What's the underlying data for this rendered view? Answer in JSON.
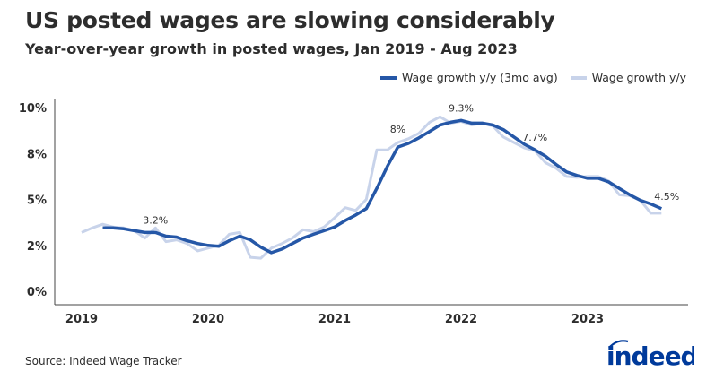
{
  "title": "US posted wages are slowing considerably",
  "subtitle": "Year-over-year growth in posted wages, Jan 2019 - Aug 2023",
  "source": "Source: Indeed Wage Tracker",
  "logo_text": "indeed",
  "colors": {
    "avg": "#2557a7",
    "raw": "#c8d3ea",
    "logo": "#003a9b"
  },
  "chart_data": {
    "type": "line",
    "title": "US posted wages are slowing considerably",
    "subtitle": "Year-over-year growth in posted wages, Jan 2019 - Aug 2023",
    "xlabel": "",
    "ylabel": "",
    "x_start": "2019-01",
    "x_frequency": "monthly",
    "x_ticks": [
      "2019",
      "2020",
      "2021",
      "2022",
      "2023"
    ],
    "y_ticks": [
      {
        "value": 0,
        "label": "0%"
      },
      {
        "value": 2.5,
        "label": "2%"
      },
      {
        "value": 5,
        "label": "5%"
      },
      {
        "value": 7.5,
        "label": "8%"
      },
      {
        "value": 10,
        "label": "10%"
      }
    ],
    "ylim": [
      0,
      10
    ],
    "grid": false,
    "legend_position": "top-right",
    "series": [
      {
        "name": "Wage growth y/y (3mo avg)",
        "start": "2019-03",
        "values": [
          3.45,
          3.45,
          3.4,
          3.3,
          3.2,
          3.2,
          3.0,
          2.95,
          2.75,
          2.6,
          2.5,
          2.45,
          2.75,
          3.0,
          2.8,
          2.4,
          2.1,
          2.3,
          2.6,
          2.9,
          3.1,
          3.3,
          3.5,
          3.85,
          4.15,
          4.5,
          5.6,
          6.8,
          7.85,
          8.05,
          8.35,
          8.7,
          9.05,
          9.2,
          9.3,
          9.15,
          9.15,
          9.05,
          8.8,
          8.4,
          8.0,
          7.7,
          7.35,
          6.9,
          6.5,
          6.3,
          6.15,
          6.15,
          5.95,
          5.6,
          5.25,
          4.95,
          4.75,
          4.5
        ]
      },
      {
        "name": "Wage growth y/y",
        "start": "2019-01",
        "values": [
          3.2,
          3.45,
          3.65,
          3.5,
          3.45,
          3.3,
          2.9,
          3.45,
          2.7,
          2.8,
          2.6,
          2.2,
          2.35,
          2.5,
          3.1,
          3.2,
          1.85,
          1.8,
          2.35,
          2.6,
          2.9,
          3.35,
          3.25,
          3.5,
          4.0,
          4.55,
          4.4,
          5.0,
          7.7,
          7.7,
          8.1,
          8.3,
          8.6,
          9.2,
          9.5,
          9.15,
          9.25,
          9.05,
          9.15,
          9.0,
          8.4,
          8.1,
          7.8,
          7.65,
          7.0,
          6.7,
          6.25,
          6.2,
          6.25,
          6.25,
          6.0,
          5.25,
          5.2,
          4.95,
          4.25,
          4.25
        ]
      }
    ],
    "annotations": [
      {
        "date": "2019-08",
        "label": "3.2%"
      },
      {
        "date": "2021-07",
        "label": "8%"
      },
      {
        "date": "2022-01",
        "label": "9.3%"
      },
      {
        "date": "2022-08",
        "label": "7.7%"
      },
      {
        "date": "2023-08",
        "label": "4.5%"
      }
    ]
  }
}
